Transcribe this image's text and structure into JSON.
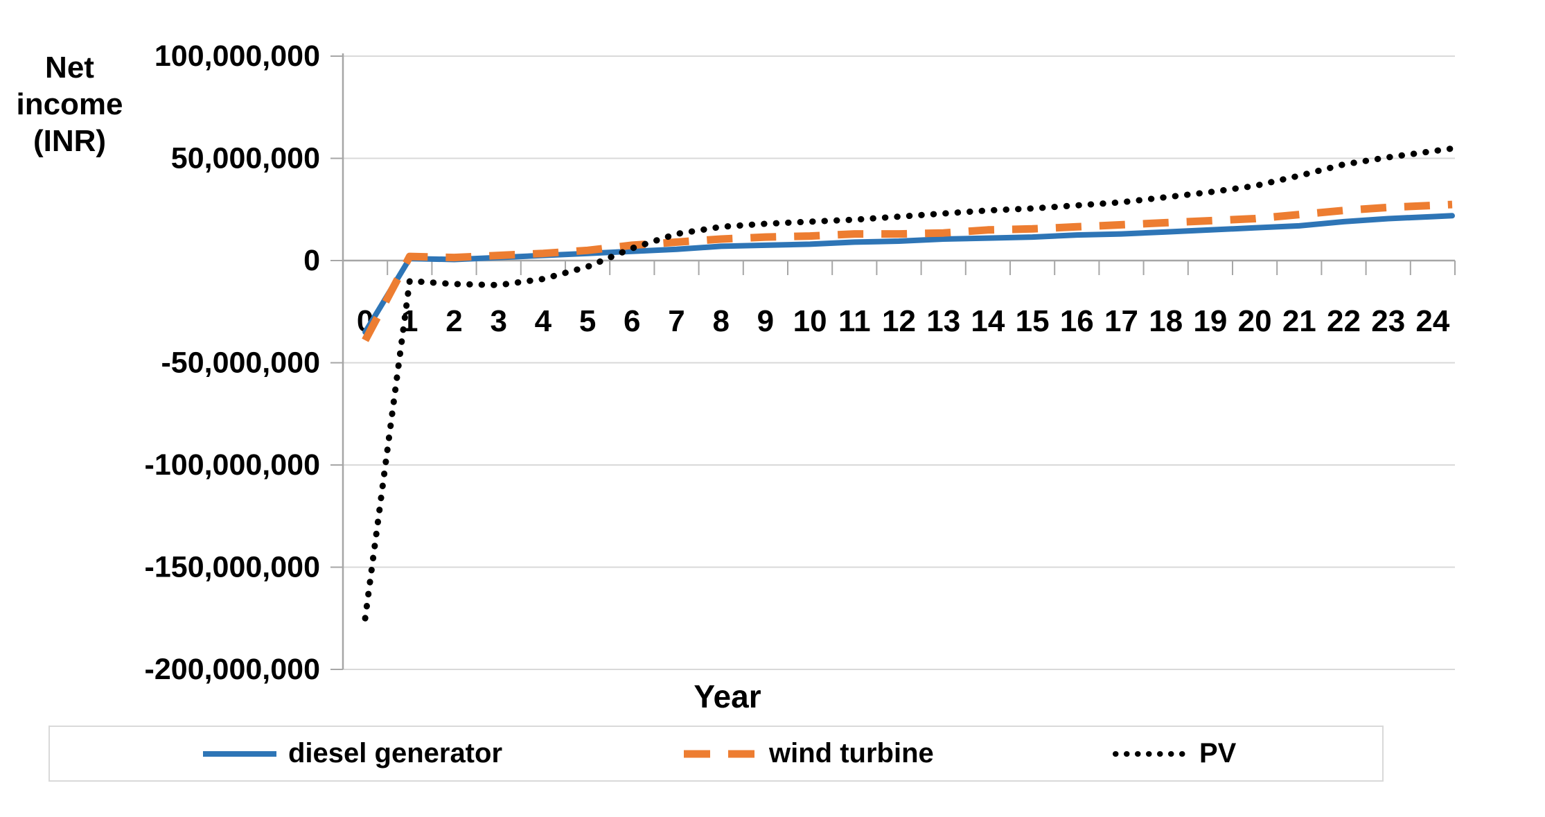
{
  "chart": {
    "y_axis_title_line1": "Net",
    "y_axis_title_line2": "income",
    "y_axis_title_line3": "(INR)",
    "x_axis_title": "Year"
  },
  "legend": {
    "items": [
      {
        "label": "diesel generator",
        "color": "#2E75B6",
        "style": "solid"
      },
      {
        "label": "wind turbine",
        "color": "#ED7D31",
        "style": "dashed"
      },
      {
        "label": "PV",
        "color": "#000000",
        "style": "dotted"
      }
    ]
  },
  "chart_data": {
    "type": "line",
    "title": "",
    "xlabel": "Year",
    "ylabel": "Net income (INR)",
    "x": [
      0,
      1,
      2,
      3,
      4,
      5,
      6,
      7,
      8,
      9,
      10,
      11,
      12,
      13,
      14,
      15,
      16,
      17,
      18,
      19,
      20,
      21,
      22,
      23,
      24
    ],
    "x_tick_labels": [
      "0",
      "1",
      "2",
      "3",
      "4",
      "5",
      "6",
      "7",
      "8",
      "9",
      "10",
      "11",
      "12",
      "13",
      "14",
      "15",
      "16",
      "17",
      "18",
      "19",
      "20",
      "21",
      "22",
      "23",
      "24"
    ],
    "y_tick_values": [
      100000000,
      50000000,
      0,
      -50000000,
      -100000000,
      -150000000,
      -200000000
    ],
    "y_tick_labels": [
      "100,000,000",
      "50,000,000",
      "0",
      "-50,000,000",
      "-100,000,000",
      "-150,000,000",
      "-200,000,000"
    ],
    "ylim": [
      -200000000,
      100000000
    ],
    "y_tick_step": 50000000,
    "grid": "horizontal",
    "legend_position": "bottom",
    "series": [
      {
        "name": "diesel generator",
        "color": "#2E75B6",
        "line_style": "solid",
        "values": [
          -35000000,
          1000000,
          500000,
          1500000,
          2500000,
          3500000,
          4500000,
          5500000,
          7000000,
          7500000,
          8000000,
          9000000,
          9500000,
          10500000,
          11000000,
          11500000,
          12500000,
          13000000,
          14000000,
          15000000,
          16000000,
          17000000,
          19000000,
          20500000,
          21500000
        ]
      },
      {
        "name": "wind turbine",
        "color": "#ED7D31",
        "line_style": "dashed",
        "values": [
          -39000000,
          2000000,
          1500000,
          2500000,
          3500000,
          5000000,
          7500000,
          9000000,
          10500000,
          11500000,
          12000000,
          13000000,
          13000000,
          13500000,
          15000000,
          15500000,
          16500000,
          17500000,
          18500000,
          19500000,
          20500000,
          22500000,
          24500000,
          26000000,
          27000000
        ]
      },
      {
        "name": "PV",
        "color": "#000000",
        "line_style": "dotted",
        "values": [
          -175000000,
          -10000000,
          -11500000,
          -12000000,
          -9000000,
          -3000000,
          6000000,
          13000000,
          16500000,
          18000000,
          19000000,
          20000000,
          21500000,
          23000000,
          24500000,
          25500000,
          27000000,
          28500000,
          31000000,
          33500000,
          36500000,
          41500000,
          47000000,
          50500000,
          53500000
        ]
      }
    ],
    "extend_to_right_edge": true
  },
  "colors": {
    "diesel": "#2E75B6",
    "wind": "#ED7D31",
    "pv": "#000000",
    "gridline": "#D9D9D9",
    "axis": "#A6A6A6",
    "text": "#000000",
    "legend_border": "#D9D9D9",
    "background": "#FFFFFF"
  }
}
